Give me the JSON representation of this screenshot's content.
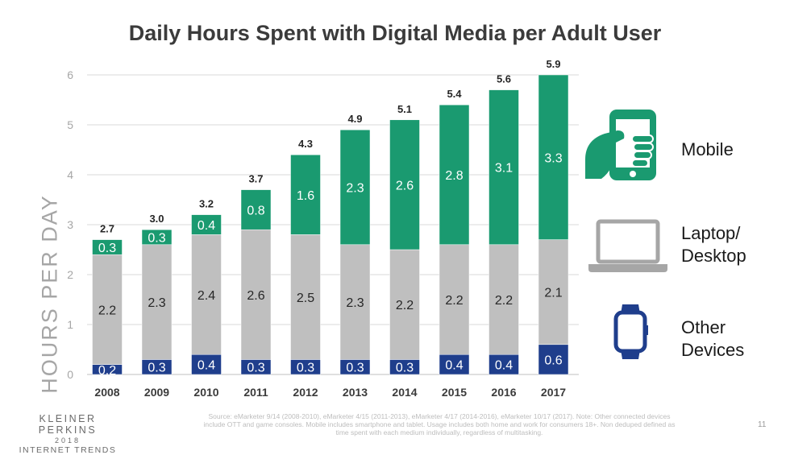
{
  "chart_data": {
    "type": "bar",
    "stacked": true,
    "title": "Daily Hours Spent with Digital Media per Adult User",
    "ylabel": "HOURS PER DAY",
    "xlabel": "",
    "ylim": [
      0,
      6
    ],
    "yticks": [
      0,
      1,
      2,
      3,
      4,
      5,
      6
    ],
    "grid": true,
    "legend_position": "right",
    "categories": [
      "2008",
      "2009",
      "2010",
      "2011",
      "2012",
      "2013",
      "2014",
      "2015",
      "2016",
      "2017"
    ],
    "series": [
      {
        "name": "Other Devices",
        "color": "#1f3e8c",
        "values": [
          0.2,
          0.3,
          0.4,
          0.3,
          0.3,
          0.3,
          0.3,
          0.4,
          0.4,
          0.6
        ]
      },
      {
        "name": "Laptop/ Desktop",
        "color": "#bfbfbf",
        "values": [
          2.2,
          2.3,
          2.4,
          2.6,
          2.5,
          2.3,
          2.2,
          2.2,
          2.2,
          2.1
        ]
      },
      {
        "name": "Mobile",
        "color": "#1a9a70",
        "values": [
          0.3,
          0.3,
          0.4,
          0.8,
          1.6,
          2.3,
          2.6,
          2.8,
          3.1,
          3.3
        ]
      }
    ],
    "totals": [
      "2.7",
      "3.0",
      "3.2",
      "3.7",
      "4.3",
      "4.9",
      "5.1",
      "5.4",
      "5.6",
      "5.9"
    ]
  },
  "legend": {
    "mobile_label": "Mobile",
    "laptop_label": "Laptop/\nDesktop",
    "other_label": "Other\nDevices",
    "mobile_icon": "smartphone-in-hand-icon",
    "laptop_icon": "laptop-icon",
    "other_icon": "smartwatch-icon"
  },
  "footer": {
    "source": "Source: eMarketer 9/14 (2008-2010), eMarketer 4/15 (2011-2013), eMarketer 4/17 (2014-2016), eMarketer 10/17 (2017). Note: Other connected devices include OTT and game consoles. Mobile includes smartphone and tablet. Usage includes both home and work for consumers 18+. Non deduped defined as time spent with each medium individually, regardless of multitasking.",
    "page_number": "11",
    "brand_name": "KLEINER PERKINS",
    "brand_year": "2018",
    "brand_sub": "INTERNET TRENDS"
  }
}
